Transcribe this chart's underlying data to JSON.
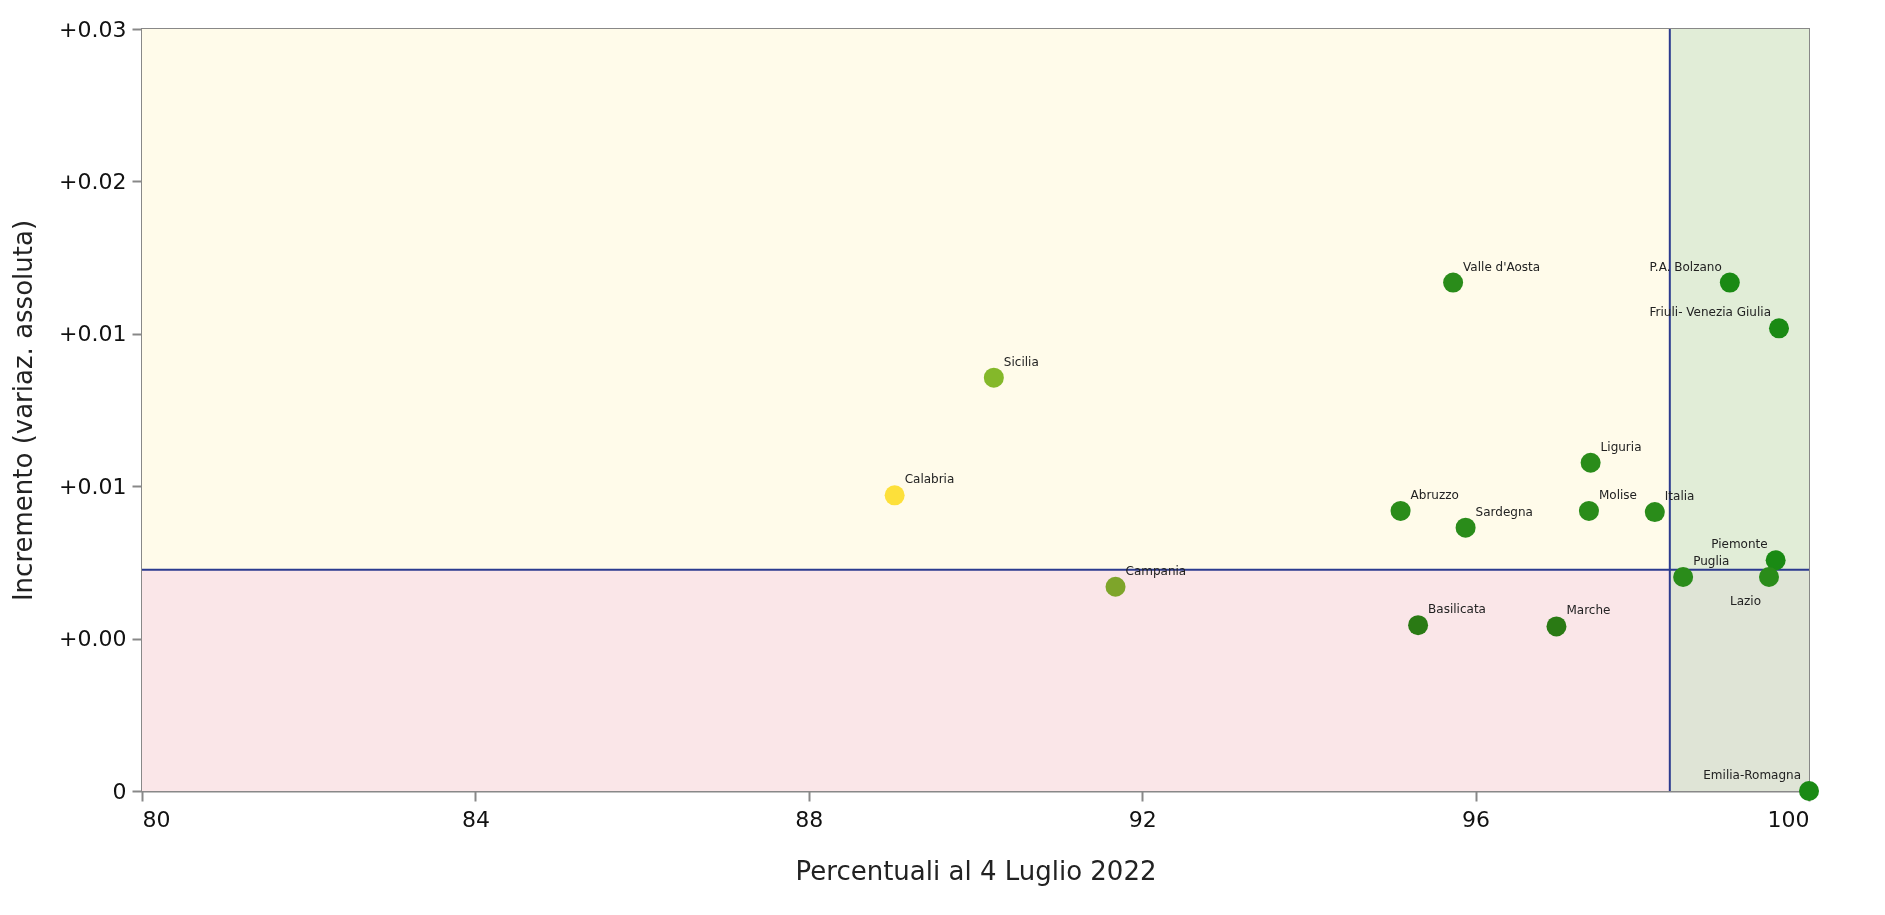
{
  "chart_data": {
    "type": "scatter",
    "xlabel": "Percentuali al 4 Luglio 2022",
    "ylabel": "Incremento (variaz. assoluta)",
    "xlim": [
      80,
      100
    ],
    "xticks": [
      80,
      84,
      88,
      92,
      96,
      100
    ],
    "ylim": [
      0,
      0.025
    ],
    "yticks": [
      {
        "value": 0,
        "label": "0"
      },
      {
        "value": 0.005,
        "label": "+0.00"
      },
      {
        "value": 0.01,
        "label": "+0.01"
      },
      {
        "value": 0.015,
        "label": "+0.01"
      },
      {
        "value": 0.02,
        "label": "+0.02"
      },
      {
        "value": 0.025,
        "label": "+0.03"
      }
    ],
    "marker": "circle",
    "grid": false,
    "legend": false,
    "ref_lines": [
      {
        "axis": "x",
        "value": 98.33,
        "color": "#2b3a8f"
      },
      {
        "axis": "y",
        "value": 0.00726,
        "color": "#2b3a8f"
      }
    ],
    "bands": [
      {
        "axis": "y",
        "from": 0,
        "to": 0.00726,
        "color": "#fae6e8"
      },
      {
        "axis": "y",
        "from": 0.00726,
        "to": 0.025,
        "color": "#fffbea"
      },
      {
        "axis": "x",
        "from": 98.33,
        "to": 100,
        "color": "#c8e2c6"
      }
    ],
    "series": [
      {
        "name": "Valle d'Aosta",
        "color": "#2a8c1a",
        "x": [
          95.73
        ],
        "values": [
          0.01668
        ]
      },
      {
        "name": "P.A. Bolzano",
        "color": "#1a8a14",
        "x": [
          99.05
        ],
        "values": [
          0.01668
        ]
      },
      {
        "name": "Friuli- Venezia Giulia",
        "color": "#1a8a14",
        "x": [
          99.64
        ],
        "values": [
          0.01518
        ]
      },
      {
        "name": "Sicilia",
        "color": "#84b82a",
        "x": [
          90.22
        ],
        "values": [
          0.01356
        ]
      },
      {
        "name": "Liguria",
        "color": "#2a8c1a",
        "x": [
          97.38
        ],
        "values": [
          0.01077
        ]
      },
      {
        "name": "Calabria",
        "color": "#fde03a",
        "x": [
          89.03
        ],
        "values": [
          0.0097
        ]
      },
      {
        "name": "Abruzzo",
        "color": "#2a8c1a",
        "x": [
          95.1
        ],
        "values": [
          0.00919
        ]
      },
      {
        "name": "Molise",
        "color": "#2a8c1a",
        "x": [
          97.36
        ],
        "values": [
          0.00919
        ]
      },
      {
        "name": "Italia",
        "color": "#2a8c1a",
        "x": [
          98.15
        ],
        "values": [
          0.00915
        ]
      },
      {
        "name": "Sardegna",
        "color": "#2a8c1a",
        "x": [
          95.88
        ],
        "values": [
          0.00864
        ]
      },
      {
        "name": "Piemonte",
        "color": "#1a8a14",
        "x": [
          99.6
        ],
        "values": [
          0.00757
        ]
      },
      {
        "name": "Puglia",
        "color": "#2a8c1a",
        "x": [
          98.49
        ],
        "values": [
          0.00702
        ]
      },
      {
        "name": "Lazio",
        "color": "#2a8c1a",
        "x": [
          99.52
        ],
        "values": [
          0.00702
        ]
      },
      {
        "name": "Campania",
        "color": "#7ea52a",
        "x": [
          91.68
        ],
        "values": [
          0.0067
        ]
      },
      {
        "name": "Basilicata",
        "color": "#2a7a14",
        "x": [
          95.31
        ],
        "values": [
          0.00544
        ]
      },
      {
        "name": "Marche",
        "color": "#2a7a14",
        "x": [
          96.97
        ],
        "values": [
          0.0054
        ]
      },
      {
        "name": "Emilia-Romagna",
        "color": "#1a8a14",
        "x": [
          100
        ],
        "values": [
          0
        ]
      }
    ]
  }
}
